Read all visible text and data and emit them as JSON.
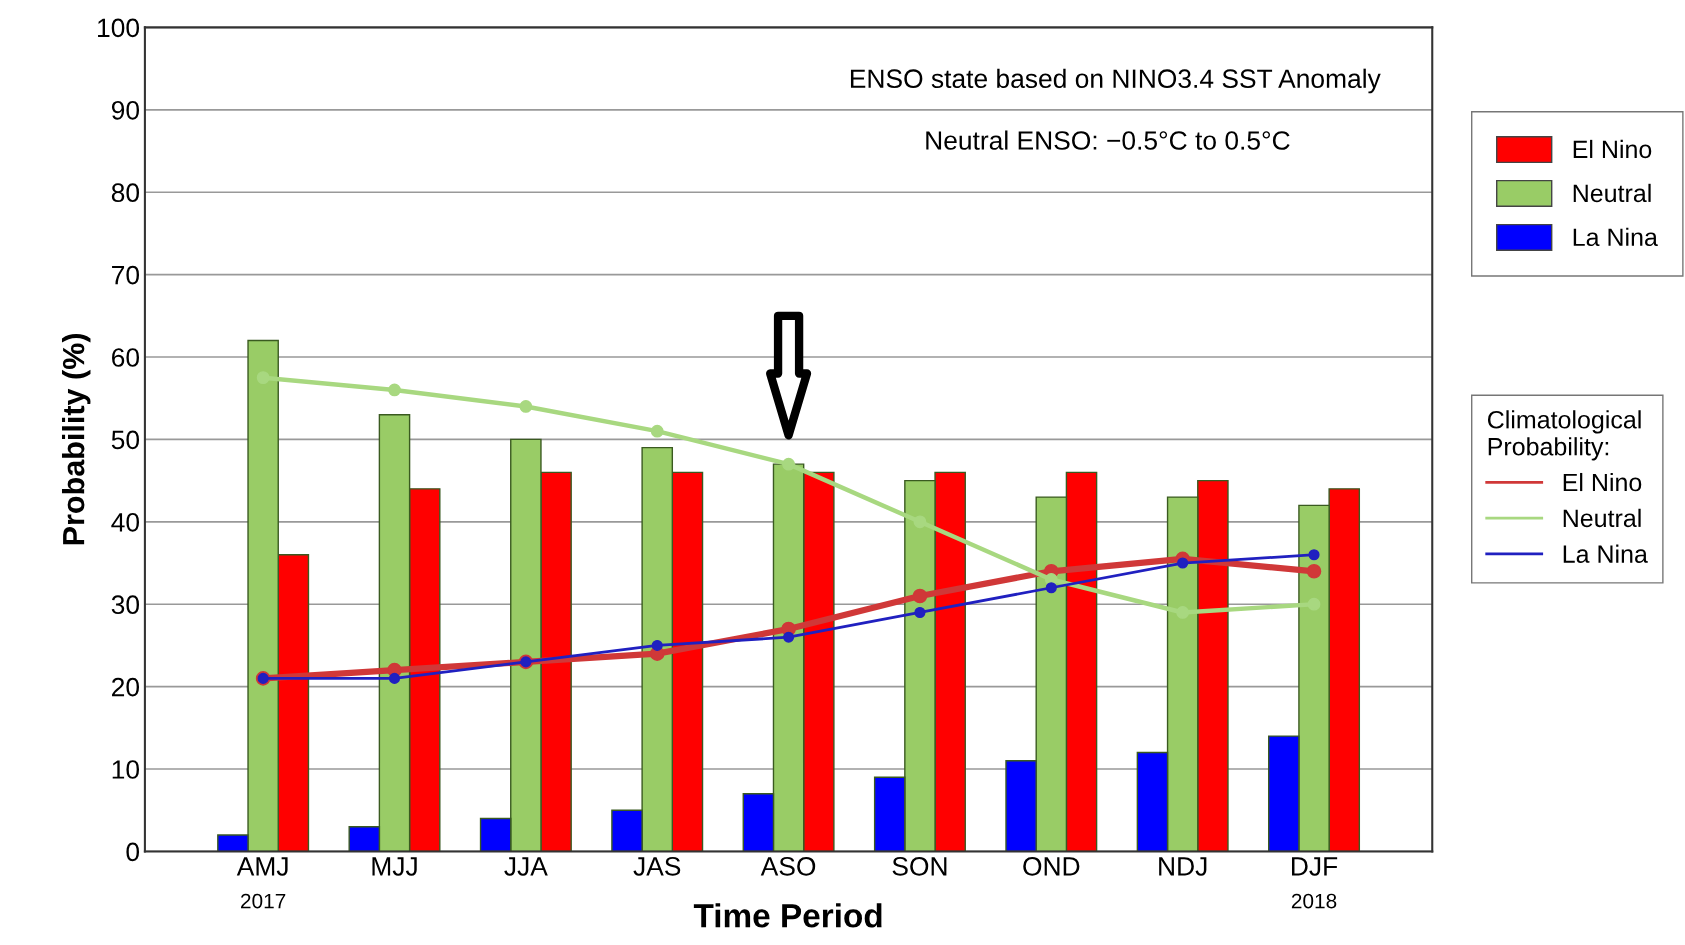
{
  "chart_data": {
    "type": "bar",
    "xlabel": "Time Period",
    "ylabel": "Probability (%)",
    "legend_title": "Climatological Probability:",
    "categories": [
      "AMJ",
      "MJJ",
      "JJA",
      "JAS",
      "ASO",
      "SON",
      "OND",
      "NDJ",
      "DJF"
    ],
    "series": [
      {
        "name": "El Nino",
        "color": "#ff0000",
        "values": [
          36,
          44,
          46,
          46,
          46,
          46,
          46,
          45,
          44
        ]
      },
      {
        "name": "Neutral",
        "color": "#99cc66",
        "values": [
          62,
          53,
          50,
          49,
          47,
          45,
          43,
          43,
          42
        ]
      },
      {
        "name": "La Nina",
        "color": "#0000ff",
        "values": [
          2,
          3,
          4,
          5,
          7,
          9,
          11,
          12,
          14
        ]
      },
      {
        "name": "El Nino",
        "type": "line",
        "color": "#d03838",
        "values": [
          21,
          22,
          23,
          24,
          27,
          31,
          34,
          35.5,
          34
        ]
      },
      {
        "name": "Neutral",
        "type": "line",
        "color": "#a8d880",
        "values": [
          57.5,
          56,
          54,
          51,
          47,
          40,
          33,
          29,
          30
        ]
      },
      {
        "name": "La Nina",
        "type": "line",
        "color": "#2020c0",
        "values": [
          21,
          21,
          23,
          25,
          26,
          29,
          32,
          35,
          36
        ]
      }
    ],
    "ylim": [
      0,
      100
    ],
    "yticks": [
      0,
      10,
      20,
      30,
      40,
      50,
      60,
      70,
      80,
      90,
      100
    ],
    "grid": "y",
    "legend": "right",
    "marker": "circle",
    "annotations": [
      "ENSO state based on NINO3.4 SST Anomaly",
      "Neutral ENSO: −0.5°C to 0.5°C",
      "2017",
      "2018"
    ]
  }
}
